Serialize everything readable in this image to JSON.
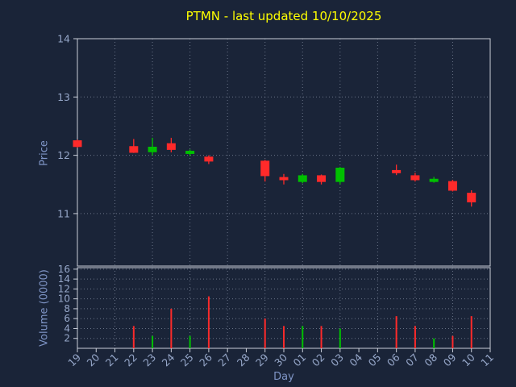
{
  "colors": {
    "background": "#1a2438",
    "title": "#ffff00",
    "axis_label": "#7f95c6",
    "tick_label": "#96a7c9",
    "spine": "#c9ced9",
    "grid": "#8a94a8",
    "up": "#00c000",
    "down": "#ff2a2a"
  },
  "chart_data": {
    "type": "candlestick",
    "title": "PTMN - last updated 10/10/2025",
    "xlabel": "Day",
    "ylabel_price": "Price",
    "ylabel_volume": "Volume (0000)",
    "x_labels": [
      "19",
      "20",
      "21",
      "22",
      "23",
      "24",
      "25",
      "26",
      "27",
      "28",
      "29",
      "30",
      "01",
      "02",
      "03",
      "04",
      "05",
      "06",
      "07",
      "08",
      "09",
      "10",
      "11"
    ],
    "price_ticks": [
      11,
      12,
      13,
      14
    ],
    "price_range": [
      10.1,
      14.0
    ],
    "volume_ticks": [
      2,
      4,
      6,
      8,
      10,
      12,
      14,
      16
    ],
    "volume_range": [
      0,
      16.3
    ],
    "grid": "dotted",
    "legend": "none",
    "candles": [
      {
        "day": "19",
        "open": 12.25,
        "high": 12.27,
        "low": 12.13,
        "close": 12.15,
        "volume": 0
      },
      {
        "day": "22",
        "open": 12.15,
        "high": 12.28,
        "low": 12.04,
        "close": 12.05,
        "volume": 4.5
      },
      {
        "day": "23",
        "open": 12.06,
        "high": 12.3,
        "low": 12.0,
        "close": 12.14,
        "volume": 2.5
      },
      {
        "day": "24",
        "open": 12.2,
        "high": 12.3,
        "low": 12.05,
        "close": 12.1,
        "volume": 8.0
      },
      {
        "day": "25",
        "open": 12.03,
        "high": 12.1,
        "low": 11.99,
        "close": 12.07,
        "volume": 2.5
      },
      {
        "day": "26",
        "open": 11.97,
        "high": 12.0,
        "low": 11.85,
        "close": 11.9,
        "volume": 10.5
      },
      {
        "day": "29",
        "open": 11.9,
        "high": 11.92,
        "low": 11.55,
        "close": 11.65,
        "volume": 6.0
      },
      {
        "day": "30",
        "open": 11.62,
        "high": 11.68,
        "low": 11.5,
        "close": 11.58,
        "volume": 4.5
      },
      {
        "day": "01",
        "open": 11.55,
        "high": 11.68,
        "low": 11.52,
        "close": 11.65,
        "volume": 4.5
      },
      {
        "day": "02",
        "open": 11.65,
        "high": 11.67,
        "low": 11.5,
        "close": 11.55,
        "volume": 4.5
      },
      {
        "day": "03",
        "open": 11.55,
        "high": 11.8,
        "low": 11.5,
        "close": 11.78,
        "volume": 4.0
      },
      {
        "day": "06",
        "open": 11.74,
        "high": 11.84,
        "low": 11.66,
        "close": 11.7,
        "volume": 6.5
      },
      {
        "day": "07",
        "open": 11.65,
        "high": 11.7,
        "low": 11.55,
        "close": 11.58,
        "volume": 4.5
      },
      {
        "day": "08",
        "open": 11.55,
        "high": 11.63,
        "low": 11.53,
        "close": 11.59,
        "volume": 2.0
      },
      {
        "day": "09",
        "open": 11.55,
        "high": 11.58,
        "low": 11.38,
        "close": 11.4,
        "volume": 2.5
      },
      {
        "day": "10",
        "open": 11.35,
        "high": 11.4,
        "low": 11.12,
        "close": 11.2,
        "volume": 6.5
      }
    ]
  }
}
